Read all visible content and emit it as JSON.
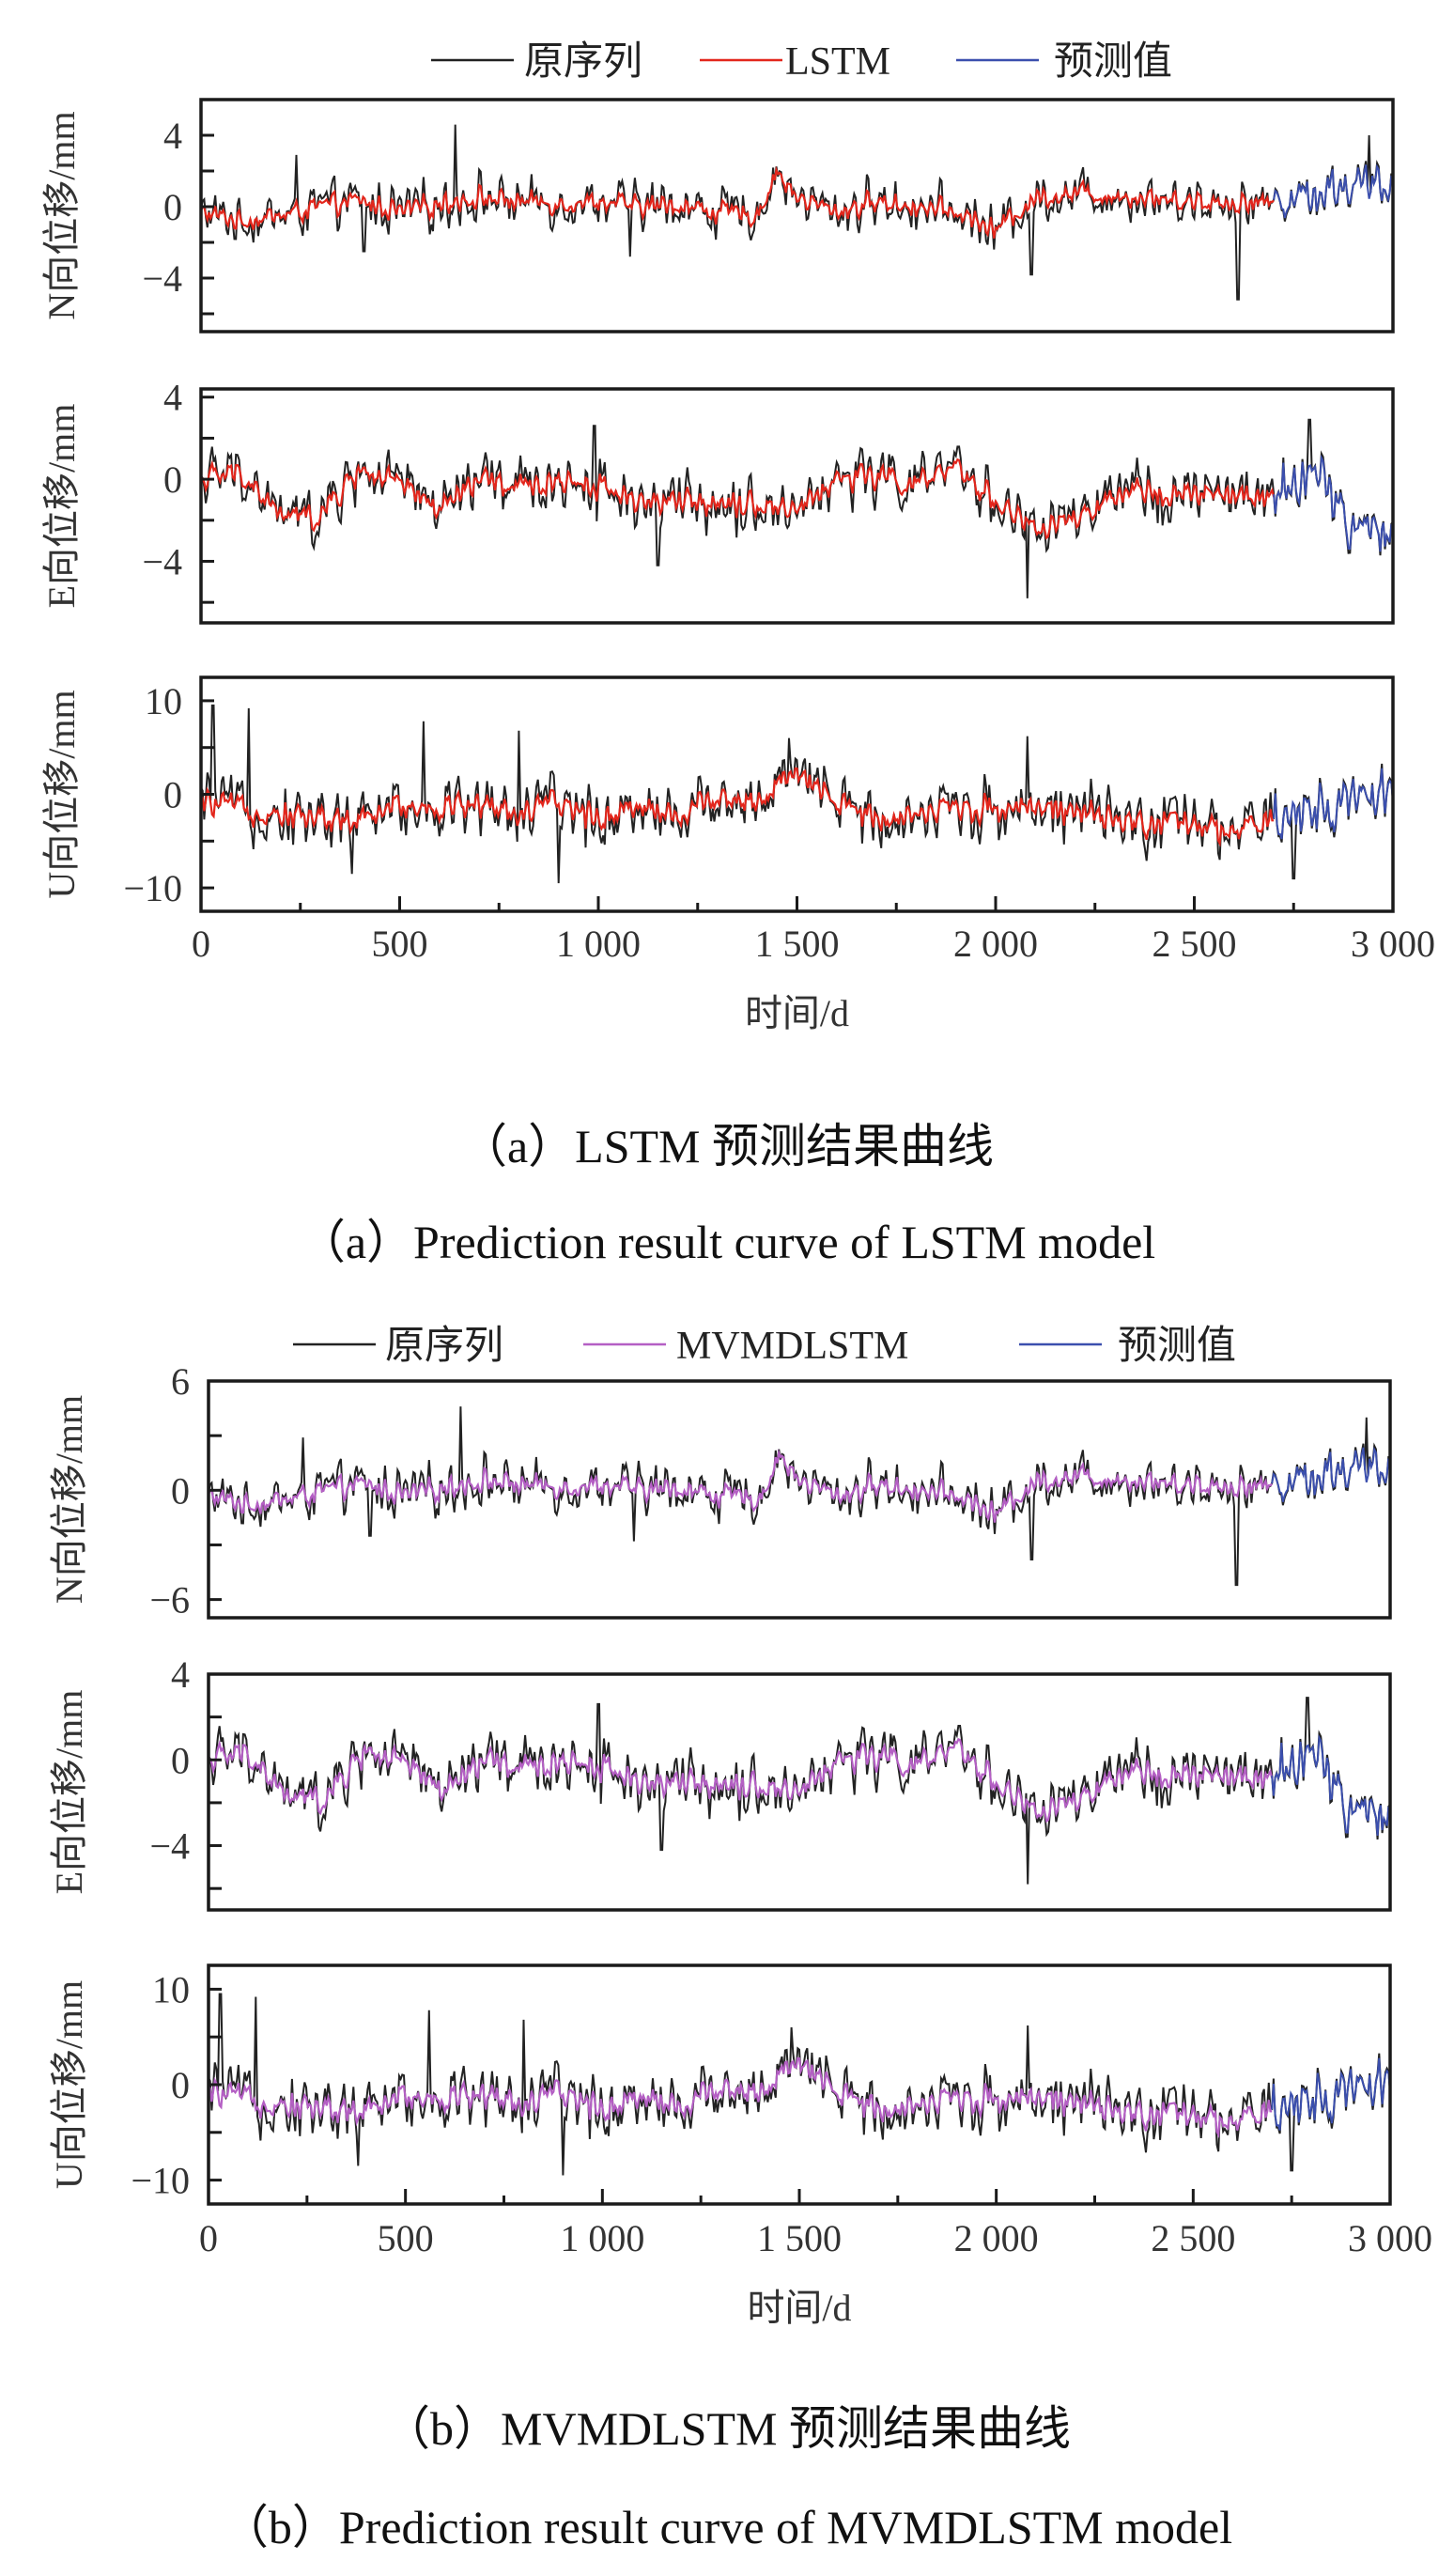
{
  "colors": {
    "original": "#222222",
    "lstm": "#e3261c",
    "mvmdlstm": "#b45fc4",
    "prediction": "#3b4fae",
    "frame": "#1a1a1a"
  },
  "figures": [
    {
      "id": "a",
      "legend": [
        "原序列",
        "LSTM",
        "预测值"
      ],
      "caption_cn": "（a）LSTM 预测结果曲线",
      "caption_en": "（a）Prediction result curve of LSTM model",
      "xlabel": "时间/d",
      "model_color_key": "lstm"
    },
    {
      "id": "b",
      "legend": [
        "原序列",
        "MVMDLSTM",
        "预测值"
      ],
      "caption_cn": "（b）MVMDLSTM 预测结果曲线",
      "caption_en": "（b）Prediction result curve of MVMDLSTM model",
      "xlabel": "时间/d",
      "model_color_key": "mvmdlstm"
    }
  ],
  "chart_data": [
    {
      "type": "line",
      "title": "（a）LSTM 预测结果曲线",
      "xlabel": "时间/d",
      "xlim": [
        0,
        3000
      ],
      "xticks": [
        0,
        500,
        1000,
        1500,
        2000,
        2500,
        3000
      ],
      "xtick_labels": [
        "0",
        "500",
        "1 000",
        "1 500",
        "2 000",
        "2 500",
        "3 000"
      ],
      "legend": {
        "entries": [
          "原序列",
          "LSTM",
          "预测值"
        ],
        "placement": "top-center"
      },
      "prediction_start": 2700,
      "x": [
        0,
        100,
        200,
        300,
        400,
        500,
        600,
        700,
        800,
        900,
        1000,
        1100,
        1200,
        1300,
        1400,
        1450,
        1500,
        1600,
        1700,
        1800,
        1900,
        2000,
        2100,
        2200,
        2300,
        2400,
        2500,
        2600,
        2700,
        2800,
        2900,
        3000
      ],
      "panels": [
        {
          "ylabel": "N向位移/mm",
          "ylim": [
            -7,
            6
          ],
          "yticks": [
            -4,
            0,
            4
          ],
          "ytick_labels": [
            "−4",
            "0",
            "4"
          ],
          "noise_amplitude": 1.2,
          "trend": [
            -0.3,
            -0.8,
            -0.5,
            0,
            0.3,
            -0.3,
            0.2,
            0.5,
            0.3,
            0.2,
            0.3,
            0,
            0.1,
            -0.3,
            -0.5,
            2.0,
            0.5,
            -0.3,
            0.3,
            0,
            -0.3,
            -1.3,
            0.5,
            0.8,
            0.6,
            0.5,
            0.3,
            0.2,
            0.3,
            0.8,
            1.2,
            1.0
          ],
          "spikes": [
            [
              240,
              2.9
            ],
            [
              640,
              4.6
            ],
            [
              410,
              -2.5
            ],
            [
              1080,
              -2.8
            ],
            [
              2090,
              -3.8
            ],
            [
              2610,
              -5.2
            ],
            [
              2940,
              4.0
            ]
          ]
        },
        {
          "ylabel": "E向位移/mm",
          "ylim": [
            -7,
            4.4
          ],
          "yticks": [
            -4,
            0,
            4
          ],
          "ytick_labels": [
            "−4",
            "0",
            "4"
          ],
          "noise_amplitude": 1.3,
          "trend": [
            0,
            0.3,
            -1.8,
            -1.8,
            0.5,
            -0.3,
            -1.5,
            0,
            -0.5,
            0,
            -0.3,
            -1.0,
            -1.2,
            -1.0,
            -1.2,
            -1.3,
            -1.5,
            0,
            0.2,
            -0.3,
            0.5,
            -1.0,
            -2.5,
            -2.0,
            -1.0,
            -0.5,
            -0.8,
            -0.8,
            -1.0,
            0.5,
            -2.5,
            -2.5
          ],
          "spikes": [
            [
              990,
              2.6
            ],
            [
              1150,
              -4.2
            ],
            [
              2080,
              -5.8
            ],
            [
              2790,
              2.9
            ]
          ]
        },
        {
          "ylabel": "U向位移/mm",
          "ylim": [
            -12.5,
            12.5
          ],
          "yticks": [
            -10,
            0,
            10
          ],
          "ytick_labels": [
            "−10",
            "0",
            "10"
          ],
          "noise_amplitude": 3.0,
          "trend": [
            -1,
            -1.5,
            -2,
            -2.5,
            -3,
            -1,
            -1.5,
            -1,
            -2,
            -1,
            -2.5,
            -1,
            -2.5,
            0,
            -1,
            1,
            2,
            -1,
            -2.5,
            -2,
            -1.5,
            -1.5,
            -1,
            -2,
            -3,
            -3,
            -3.5,
            -4,
            -3,
            -2,
            0,
            0
          ],
          "spikes": [
            [
              30,
              9.5
            ],
            [
              120,
              9.2
            ],
            [
              560,
              7.8
            ],
            [
              800,
              6.8
            ],
            [
              1480,
              6.0
            ],
            [
              2080,
              6.2
            ],
            [
              380,
              -8.5
            ],
            [
              900,
              -9.5
            ],
            [
              2750,
              -9.0
            ]
          ]
        }
      ]
    },
    {
      "type": "line",
      "title": "（b）MVMDLSTM 预测结果曲线",
      "xlabel": "时间/d",
      "xlim": [
        0,
        3000
      ],
      "xticks": [
        0,
        500,
        1000,
        1500,
        2000,
        2500,
        3000
      ],
      "xtick_labels": [
        "0",
        "500",
        "1 000",
        "1 500",
        "2 000",
        "2 500",
        "3 000"
      ],
      "legend": {
        "entries": [
          "原序列",
          "MVMDLSTM",
          "预测值"
        ],
        "placement": "top-center"
      },
      "prediction_start": 2700,
      "x": [
        0,
        100,
        200,
        300,
        400,
        500,
        600,
        700,
        800,
        900,
        1000,
        1100,
        1200,
        1300,
        1400,
        1450,
        1500,
        1600,
        1700,
        1800,
        1900,
        2000,
        2100,
        2200,
        2300,
        2400,
        2500,
        2600,
        2700,
        2800,
        2900,
        3000
      ],
      "panels": [
        {
          "ylabel": "N向位移/mm",
          "ylim": [
            -7,
            6
          ],
          "yticks": [
            -6,
            0,
            6
          ],
          "ytick_labels": [
            "−6",
            "0",
            "6"
          ],
          "noise_amplitude": 1.2,
          "trend": [
            -0.3,
            -0.8,
            -0.5,
            0,
            0.3,
            -0.3,
            0.2,
            0.5,
            0.3,
            0.2,
            0.3,
            0,
            0.1,
            -0.3,
            -0.5,
            2.0,
            0.5,
            -0.3,
            0.3,
            0,
            -0.3,
            -1.3,
            0.5,
            0.8,
            0.6,
            0.5,
            0.3,
            0.2,
            0.3,
            0.8,
            1.2,
            1.0
          ],
          "spikes": [
            [
              240,
              2.9
            ],
            [
              640,
              4.6
            ],
            [
              410,
              -2.5
            ],
            [
              1080,
              -2.8
            ],
            [
              2090,
              -3.8
            ],
            [
              2610,
              -5.2
            ],
            [
              2940,
              4.0
            ]
          ]
        },
        {
          "ylabel": "E向位移/mm",
          "ylim": [
            -7,
            4
          ],
          "yticks": [
            -4,
            0,
            4
          ],
          "ytick_labels": [
            "−4",
            "0",
            "4"
          ],
          "noise_amplitude": 1.3,
          "trend": [
            0,
            0.3,
            -1.8,
            -1.8,
            0.5,
            -0.3,
            -1.5,
            0,
            -0.5,
            0,
            -0.3,
            -1.0,
            -1.2,
            -1.0,
            -1.2,
            -1.3,
            -1.5,
            0,
            0.2,
            -0.3,
            0.5,
            -1.0,
            -2.5,
            -2.0,
            -1.0,
            -0.5,
            -0.8,
            -0.8,
            -1.0,
            0.5,
            -2.5,
            -2.5
          ],
          "spikes": [
            [
              990,
              2.6
            ],
            [
              1150,
              -4.2
            ],
            [
              2080,
              -5.8
            ],
            [
              2790,
              2.9
            ]
          ]
        },
        {
          "ylabel": "U向位移/mm",
          "ylim": [
            -12.5,
            12.5
          ],
          "yticks": [
            -10,
            0,
            10
          ],
          "ytick_labels": [
            "−10",
            "0",
            "10"
          ],
          "noise_amplitude": 3.0,
          "trend": [
            -1,
            -1.5,
            -2,
            -2.5,
            -3,
            -1,
            -1.5,
            -1,
            -2,
            -1,
            -2.5,
            -1,
            -2.5,
            0,
            -1,
            1,
            2,
            -1,
            -2.5,
            -2,
            -1.5,
            -1.5,
            -1,
            -2,
            -3,
            -3,
            -3.5,
            -4,
            -3,
            -2,
            0,
            0
          ],
          "spikes": [
            [
              30,
              9.5
            ],
            [
              120,
              9.2
            ],
            [
              560,
              7.8
            ],
            [
              800,
              6.8
            ],
            [
              1480,
              6.0
            ],
            [
              2080,
              6.2
            ],
            [
              380,
              -8.5
            ],
            [
              900,
              -9.5
            ],
            [
              2750,
              -9.0
            ]
          ]
        }
      ]
    }
  ]
}
